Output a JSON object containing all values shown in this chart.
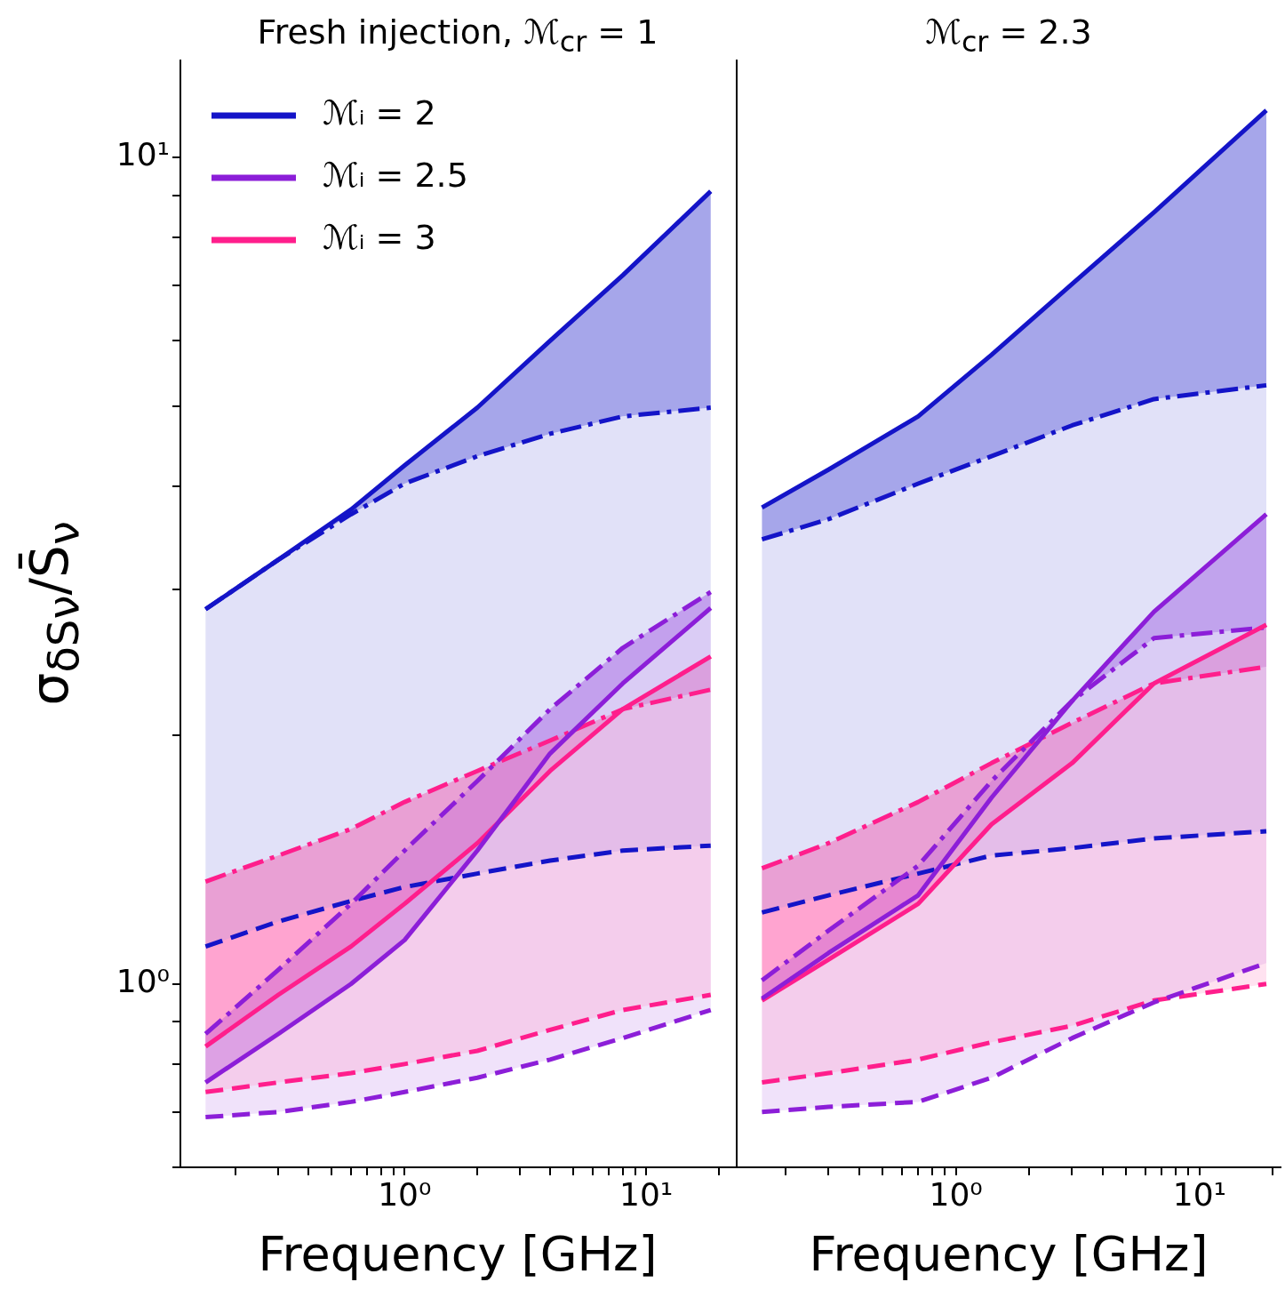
{
  "chart_data": [
    {
      "type": "line",
      "title": "Fresh injection, ℳ$_{cr}$ = 1",
      "xlabel": "Frequency [GHz]",
      "ylabel": "σ$_{δSν}$/S̄$_{ν}$",
      "log": "xy",
      "legend": "top left",
      "xlim": [
        0.118,
        23.3
      ],
      "ylim": [
        0.6,
        13.1
      ],
      "xticks": [
        {
          "value": 0.2,
          "label": null
        },
        {
          "value": 0.3,
          "label": null
        },
        {
          "value": 0.4,
          "label": null
        },
        {
          "value": 0.5,
          "label": null
        },
        {
          "value": 0.6,
          "label": null
        },
        {
          "value": 0.7,
          "label": null
        },
        {
          "value": 0.8,
          "label": null
        },
        {
          "value": 0.9,
          "label": null
        },
        {
          "value": 1,
          "label": "10⁰"
        },
        {
          "value": 2,
          "label": null
        },
        {
          "value": 3,
          "label": null
        },
        {
          "value": 4,
          "label": null
        },
        {
          "value": 5,
          "label": null
        },
        {
          "value": 6,
          "label": null
        },
        {
          "value": 7,
          "label": null
        },
        {
          "value": 8,
          "label": null
        },
        {
          "value": 9,
          "label": null
        },
        {
          "value": 10,
          "label": "10¹"
        },
        {
          "value": 20,
          "label": null
        }
      ],
      "yticks": [
        {
          "value": 0.6,
          "label": null
        },
        {
          "value": 0.7,
          "label": null
        },
        {
          "value": 0.8,
          "label": null
        },
        {
          "value": 0.9,
          "label": null
        },
        {
          "value": 1,
          "label": "10⁰"
        },
        {
          "value": 2,
          "label": null
        },
        {
          "value": 3,
          "label": null
        },
        {
          "value": 4,
          "label": null
        },
        {
          "value": 5,
          "label": null
        },
        {
          "value": 6,
          "label": null
        },
        {
          "value": 7,
          "label": null
        },
        {
          "value": 8,
          "label": null
        },
        {
          "value": 9,
          "label": null
        },
        {
          "value": 10,
          "label": "10¹"
        }
      ],
      "x": [
        0.15,
        0.3,
        0.6,
        1,
        2,
        4,
        8,
        18.5
      ],
      "series": [
        {
          "name": "ℳᵢ = 2",
          "color": "#1414c8",
          "line_style": "solid",
          "values": [
            2.84,
            3.26,
            3.75,
            4.24,
            4.98,
            6.0,
            7.2,
            9.1
          ],
          "lower": [
            2.84,
            3.26,
            3.7,
            4.03,
            4.35,
            4.63,
            4.86,
            4.98
          ],
          "upper": [
            2.84,
            3.26,
            3.75,
            4.24,
            4.98,
            6.0,
            7.2,
            9.1
          ]
        },
        {
          "name": "ℳᵢ = 2.5",
          "color": "#8c1ed8",
          "line_style": "solid",
          "values": [
            0.76,
            0.87,
            1.0,
            1.13,
            1.45,
            1.9,
            2.31,
            2.85
          ],
          "lower": [
            0.87,
            1.04,
            1.25,
            1.45,
            1.76,
            2.15,
            2.55,
            2.98
          ],
          "upper": [
            0.76,
            0.87,
            1.0,
            1.13,
            1.45,
            1.9,
            2.31,
            2.85
          ]
        },
        {
          "name": "ℳᵢ = 3",
          "color": "#ff1e8c",
          "line_style": "solid",
          "values": [
            0.84,
            0.97,
            1.11,
            1.25,
            1.48,
            1.81,
            2.15,
            2.49
          ],
          "lower": [
            1.33,
            1.43,
            1.54,
            1.66,
            1.81,
            1.97,
            2.15,
            2.27
          ],
          "upper": [
            0.84,
            0.97,
            1.11,
            1.25,
            1.48,
            1.81,
            2.15,
            2.49
          ]
        },
        {
          "color": "#1414c8",
          "line_style": "dashdot",
          "values": [
            2.84,
            3.26,
            3.7,
            4.03,
            4.35,
            4.63,
            4.86,
            4.98
          ],
          "lower": [
            1.11,
            1.19,
            1.26,
            1.31,
            1.36,
            1.41,
            1.45,
            1.47
          ],
          "upper": [
            2.84,
            3.26,
            3.7,
            4.03,
            4.35,
            4.63,
            4.86,
            4.98
          ]
        },
        {
          "color": "#8c1ed8",
          "line_style": "dashdot",
          "values": [
            0.87,
            1.04,
            1.25,
            1.45,
            1.76,
            2.15,
            2.55,
            2.98
          ],
          "lower": [
            0.69,
            0.7,
            0.72,
            0.74,
            0.77,
            0.81,
            0.86,
            0.93
          ],
          "upper": [
            0.87,
            1.04,
            1.25,
            1.45,
            1.76,
            2.15,
            2.55,
            2.98
          ]
        },
        {
          "color": "#ff1e8c",
          "line_style": "dashdot",
          "values": [
            1.33,
            1.43,
            1.54,
            1.66,
            1.81,
            1.97,
            2.15,
            2.27
          ],
          "lower": [
            0.74,
            0.76,
            0.78,
            0.8,
            0.83,
            0.88,
            0.93,
            0.97
          ],
          "upper": [
            1.33,
            1.43,
            1.54,
            1.66,
            1.81,
            1.97,
            2.15,
            2.27
          ]
        },
        {
          "color": "#1414c8",
          "line_style": "dashed",
          "values": [
            1.11,
            1.19,
            1.26,
            1.31,
            1.36,
            1.41,
            1.45,
            1.47
          ]
        },
        {
          "color": "#8c1ed8",
          "line_style": "dashed",
          "values": [
            0.69,
            0.7,
            0.72,
            0.74,
            0.77,
            0.81,
            0.86,
            0.93
          ]
        },
        {
          "color": "#ff1e8c",
          "line_style": "dashed",
          "values": [
            0.74,
            0.76,
            0.78,
            0.8,
            0.83,
            0.88,
            0.93,
            0.97
          ]
        }
      ]
    },
    {
      "type": "line",
      "title": "ℳ$_{cr}$ = 2.3",
      "xlabel": "Frequency [GHz]",
      "log": "xy",
      "tick_labels": "x",
      "xlim": [
        0.126,
        21.5
      ],
      "ylim": [
        0.6,
        13.1
      ],
      "xticks": [
        {
          "value": 0.2,
          "label": null
        },
        {
          "value": 0.3,
          "label": null
        },
        {
          "value": 0.4,
          "label": null
        },
        {
          "value": 0.5,
          "label": null
        },
        {
          "value": 0.6,
          "label": null
        },
        {
          "value": 0.7,
          "label": null
        },
        {
          "value": 0.8,
          "label": null
        },
        {
          "value": 0.9,
          "label": null
        },
        {
          "value": 1,
          "label": "10⁰"
        },
        {
          "value": 2,
          "label": null
        },
        {
          "value": 3,
          "label": null
        },
        {
          "value": 4,
          "label": null
        },
        {
          "value": 5,
          "label": null
        },
        {
          "value": 6,
          "label": null
        },
        {
          "value": 7,
          "label": null
        },
        {
          "value": 8,
          "label": null
        },
        {
          "value": 9,
          "label": null
        },
        {
          "value": 10,
          "label": "10¹"
        },
        {
          "value": 20,
          "label": null
        }
      ],
      "yticks": [
        {
          "value": 0.6,
          "label": null
        },
        {
          "value": 0.7,
          "label": null
        },
        {
          "value": 0.8,
          "label": null
        },
        {
          "value": 0.9,
          "label": null
        },
        {
          "value": 1,
          "label": null
        },
        {
          "value": 2,
          "label": null
        },
        {
          "value": 3,
          "label": null
        },
        {
          "value": 4,
          "label": null
        },
        {
          "value": 5,
          "label": null
        },
        {
          "value": 6,
          "label": null
        },
        {
          "value": 7,
          "label": null
        },
        {
          "value": 8,
          "label": null
        },
        {
          "value": 9,
          "label": null
        },
        {
          "value": 10,
          "label": null
        }
      ],
      "x": [
        0.16,
        0.3,
        0.7,
        1.4,
        3,
        6.5,
        18.8
      ],
      "series": [
        {
          "color": "#1414c8",
          "line_style": "solid",
          "values": [
            3.77,
            4.19,
            4.86,
            5.77,
            7.03,
            8.58,
            11.4
          ],
          "lower": [
            3.45,
            3.65,
            4.03,
            4.35,
            4.74,
            5.1,
            5.3
          ],
          "upper": [
            3.77,
            4.19,
            4.86,
            5.77,
            7.03,
            8.58,
            11.4
          ]
        },
        {
          "color": "#8c1ed8",
          "line_style": "solid",
          "values": [
            0.96,
            1.09,
            1.28,
            1.68,
            2.2,
            2.82,
            3.7
          ],
          "lower": [
            1.01,
            1.16,
            1.39,
            1.76,
            2.2,
            2.62,
            2.7
          ],
          "upper": [
            0.96,
            1.09,
            1.28,
            1.68,
            2.2,
            2.82,
            3.7
          ]
        },
        {
          "color": "#ff1e8c",
          "line_style": "solid",
          "values": [
            0.955,
            1.07,
            1.25,
            1.56,
            1.85,
            2.31,
            2.72
          ],
          "lower": [
            1.38,
            1.48,
            1.66,
            1.85,
            2.07,
            2.31,
            2.42
          ],
          "upper": [
            0.955,
            1.07,
            1.25,
            1.56,
            1.85,
            2.31,
            2.72
          ]
        },
        {
          "color": "#1414c8",
          "line_style": "dashdot",
          "values": [
            3.45,
            3.65,
            4.03,
            4.35,
            4.74,
            5.1,
            5.3
          ],
          "lower": [
            1.22,
            1.28,
            1.36,
            1.43,
            1.46,
            1.5,
            1.53
          ],
          "upper": [
            3.45,
            3.65,
            4.03,
            4.35,
            4.74,
            5.1,
            5.3
          ]
        },
        {
          "color": "#8c1ed8",
          "line_style": "dashdot",
          "values": [
            1.01,
            1.16,
            1.39,
            1.76,
            2.2,
            2.62,
            2.7
          ],
          "lower": [
            0.7,
            0.71,
            0.72,
            0.77,
            0.86,
            0.95,
            1.06
          ],
          "upper": [
            1.01,
            1.16,
            1.39,
            1.76,
            2.2,
            2.62,
            2.7
          ]
        },
        {
          "color": "#ff1e8c",
          "line_style": "dashdot",
          "values": [
            1.38,
            1.48,
            1.66,
            1.85,
            2.07,
            2.31,
            2.42
          ],
          "lower": [
            0.76,
            0.78,
            0.81,
            0.85,
            0.89,
            0.955,
            1.0
          ],
          "upper": [
            1.38,
            1.48,
            1.66,
            1.85,
            2.07,
            2.31,
            2.42
          ]
        },
        {
          "color": "#1414c8",
          "line_style": "dashed",
          "values": [
            1.22,
            1.28,
            1.36,
            1.43,
            1.46,
            1.5,
            1.53
          ]
        },
        {
          "color": "#8c1ed8",
          "line_style": "dashed",
          "values": [
            0.7,
            0.71,
            0.72,
            0.77,
            0.86,
            0.95,
            1.06
          ]
        },
        {
          "color": "#ff1e8c",
          "line_style": "dashed",
          "values": [
            0.76,
            0.78,
            0.81,
            0.85,
            0.89,
            0.955,
            1.0
          ]
        }
      ]
    }
  ]
}
